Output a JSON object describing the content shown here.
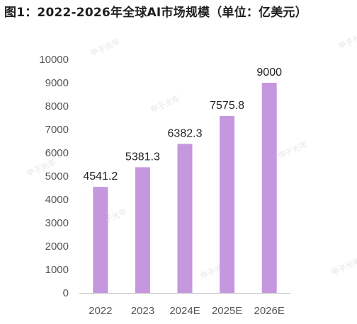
{
  "title": "图1：2022-2026年全球AI市场规模（单位：亿美元）",
  "watermark": "甲子光年",
  "colors": {
    "bar": "#c597de",
    "axis": "#bfbfbf",
    "text": "#555555",
    "label": "#222222"
  },
  "chart_data": {
    "type": "bar",
    "categories": [
      "2022",
      "2023",
      "2024E",
      "2025E",
      "2026E"
    ],
    "values": [
      4541.2,
      5381.3,
      6382.3,
      7575.8,
      9000
    ],
    "value_labels": [
      "4541.2",
      "5381.3",
      "6382.3",
      "7575.8",
      "9000"
    ],
    "ylim": [
      0,
      10000
    ],
    "yticks": [
      0,
      1000,
      2000,
      3000,
      4000,
      5000,
      6000,
      7000,
      8000,
      9000,
      10000
    ],
    "grid": false,
    "legend": "none"
  }
}
